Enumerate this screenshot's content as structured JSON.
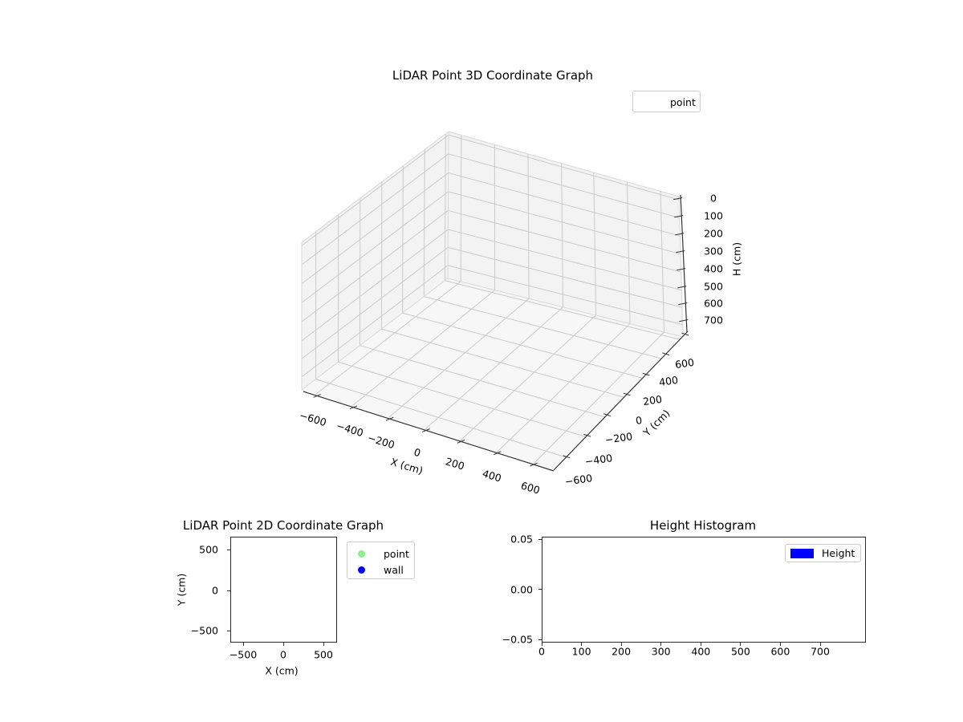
{
  "plot3d": {
    "title": "LiDAR Point 3D Coordinate Graph",
    "xlabel": "X (cm)",
    "ylabel": "Y (cm)",
    "zlabel": "H (cm)",
    "x_ticks": [
      "−600",
      "−400",
      "−200",
      "0",
      "200",
      "400",
      "600"
    ],
    "y_ticks": [
      "600",
      "400",
      "200",
      "0",
      "−200",
      "−400",
      "−600"
    ],
    "z_ticks": [
      "0",
      "100",
      "200",
      "300",
      "400",
      "500",
      "600",
      "700"
    ],
    "legend": [
      {
        "label": "point"
      }
    ]
  },
  "plot2d": {
    "title": "LiDAR Point 2D Coordinate Graph",
    "xlabel": "X (cm)",
    "ylabel": "Y (cm)",
    "x_ticks": [
      "−500",
      "0",
      "500"
    ],
    "y_ticks": [
      "500",
      "0",
      "−500"
    ],
    "legend": [
      {
        "label": "point",
        "color": "#90ee90"
      },
      {
        "label": "wall",
        "color": "#0000ff"
      }
    ]
  },
  "hist": {
    "title": "Height Histogram",
    "x_ticks": [
      "0",
      "100",
      "200",
      "300",
      "400",
      "500",
      "600",
      "700"
    ],
    "y_ticks": [
      "0.05",
      "0.00",
      "−0.05"
    ],
    "legend": [
      {
        "label": "Height",
        "color": "#0000ff"
      }
    ]
  },
  "colors": {
    "point": "#90ee90",
    "wall": "#0000ff",
    "height_bar": "#0000ff",
    "grid": "#cacaca",
    "pane_wall": "#f3f3f3",
    "pane_floor": "#f7f7f7",
    "pane_edge": "#d8d8d8",
    "spine": "#333333"
  },
  "chart_data": [
    {
      "type": "scatter",
      "projection": "3d",
      "title": "LiDAR Point 3D Coordinate Graph",
      "xlabel": "X (cm)",
      "ylabel": "Y (cm)",
      "zlabel": "H (cm)",
      "xlim": [
        -750,
        750
      ],
      "ylim": [
        -750,
        750
      ],
      "zlim": [
        0,
        750
      ],
      "zaxis_inverted": true,
      "x_ticks": [
        -600,
        -400,
        -200,
        0,
        200,
        400,
        600
      ],
      "y_ticks": [
        -600,
        -400,
        -200,
        0,
        200,
        400,
        600
      ],
      "z_ticks": [
        0,
        100,
        200,
        300,
        400,
        500,
        600,
        700
      ],
      "grid": true,
      "legend_position": "upper right",
      "series": [
        {
          "name": "point",
          "points": []
        }
      ]
    },
    {
      "type": "scatter",
      "title": "LiDAR Point 2D Coordinate Graph",
      "xlabel": "X (cm)",
      "ylabel": "Y (cm)",
      "xlim": [
        -660,
        660
      ],
      "ylim": [
        -660,
        660
      ],
      "x_ticks": [
        -500,
        0,
        500
      ],
      "y_ticks": [
        -500,
        0,
        500
      ],
      "grid": false,
      "legend_position": "outside upper right",
      "series": [
        {
          "name": "point",
          "color": "#90ee90",
          "points": []
        },
        {
          "name": "wall",
          "color": "#0000ff",
          "points": []
        }
      ]
    },
    {
      "type": "bar",
      "title": "Height Histogram",
      "xlabel": "",
      "ylabel": "",
      "xlim": [
        0,
        813
      ],
      "ylim": [
        -0.052,
        0.052
      ],
      "x_ticks": [
        0,
        100,
        200,
        300,
        400,
        500,
        600,
        700
      ],
      "y_ticks": [
        0.05,
        0.0,
        -0.05
      ],
      "grid": false,
      "legend_position": "upper right",
      "series": [
        {
          "name": "Height",
          "color": "#0000ff",
          "values": []
        }
      ]
    }
  ]
}
